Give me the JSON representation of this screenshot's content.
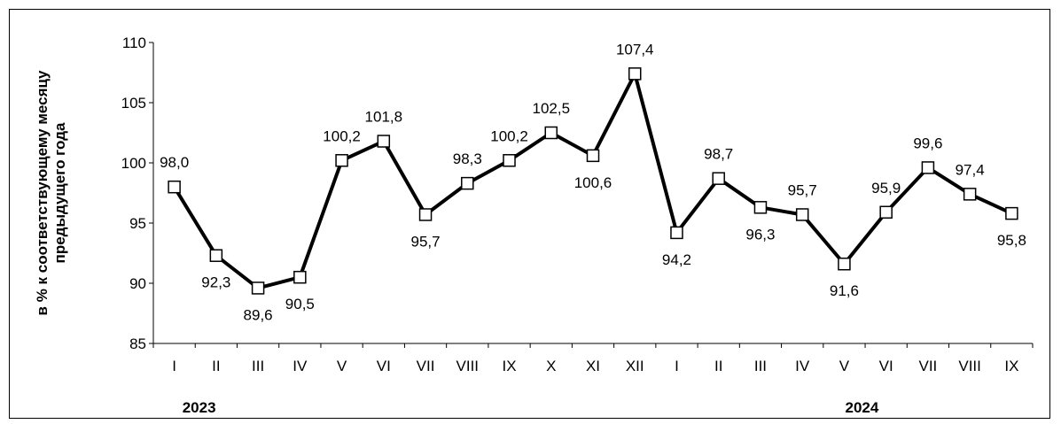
{
  "chart_data": {
    "type": "line",
    "ylabel": "в % к соответствующему месяцу\nпредыдущего года",
    "ylim": [
      85,
      110
    ],
    "yticks": [
      85,
      90,
      95,
      100,
      105,
      110
    ],
    "categories": [
      "I",
      "II",
      "III",
      "IV",
      "V",
      "VI",
      "VII",
      "VIII",
      "IX",
      "X",
      "XI",
      "XII",
      "I",
      "II",
      "III",
      "IV",
      "V",
      "VI",
      "VII",
      "VIII",
      "IX"
    ],
    "years": [
      {
        "label": "2023",
        "start": 0,
        "count": 12
      },
      {
        "label": "2024",
        "start": 12,
        "count": 9
      }
    ],
    "series": [
      {
        "values": [
          98.0,
          92.3,
          89.6,
          90.5,
          100.2,
          101.8,
          95.7,
          98.3,
          100.2,
          102.5,
          100.6,
          107.4,
          94.2,
          98.7,
          96.3,
          95.7,
          91.6,
          95.9,
          99.6,
          97.4,
          95.8
        ],
        "labels": [
          "98,0",
          "92,3",
          "89,6",
          "90,5",
          "100,2",
          "101,8",
          "95,7",
          "98,3",
          "100,2",
          "102,5",
          "100,6",
          "107,4",
          "94,2",
          "98,7",
          "96,3",
          "95,7",
          "91,6",
          "95,9",
          "99,6",
          "97,4",
          "95,8"
        ],
        "label_pos": [
          "above",
          "below",
          "below",
          "below",
          "above",
          "above",
          "below",
          "above",
          "above",
          "above",
          "below",
          "above",
          "below",
          "above",
          "below",
          "above",
          "below",
          "above",
          "above",
          "above",
          "below"
        ]
      }
    ],
    "grid": false,
    "legend": "none",
    "line_color": "#000000",
    "marker": "square-hollow"
  }
}
